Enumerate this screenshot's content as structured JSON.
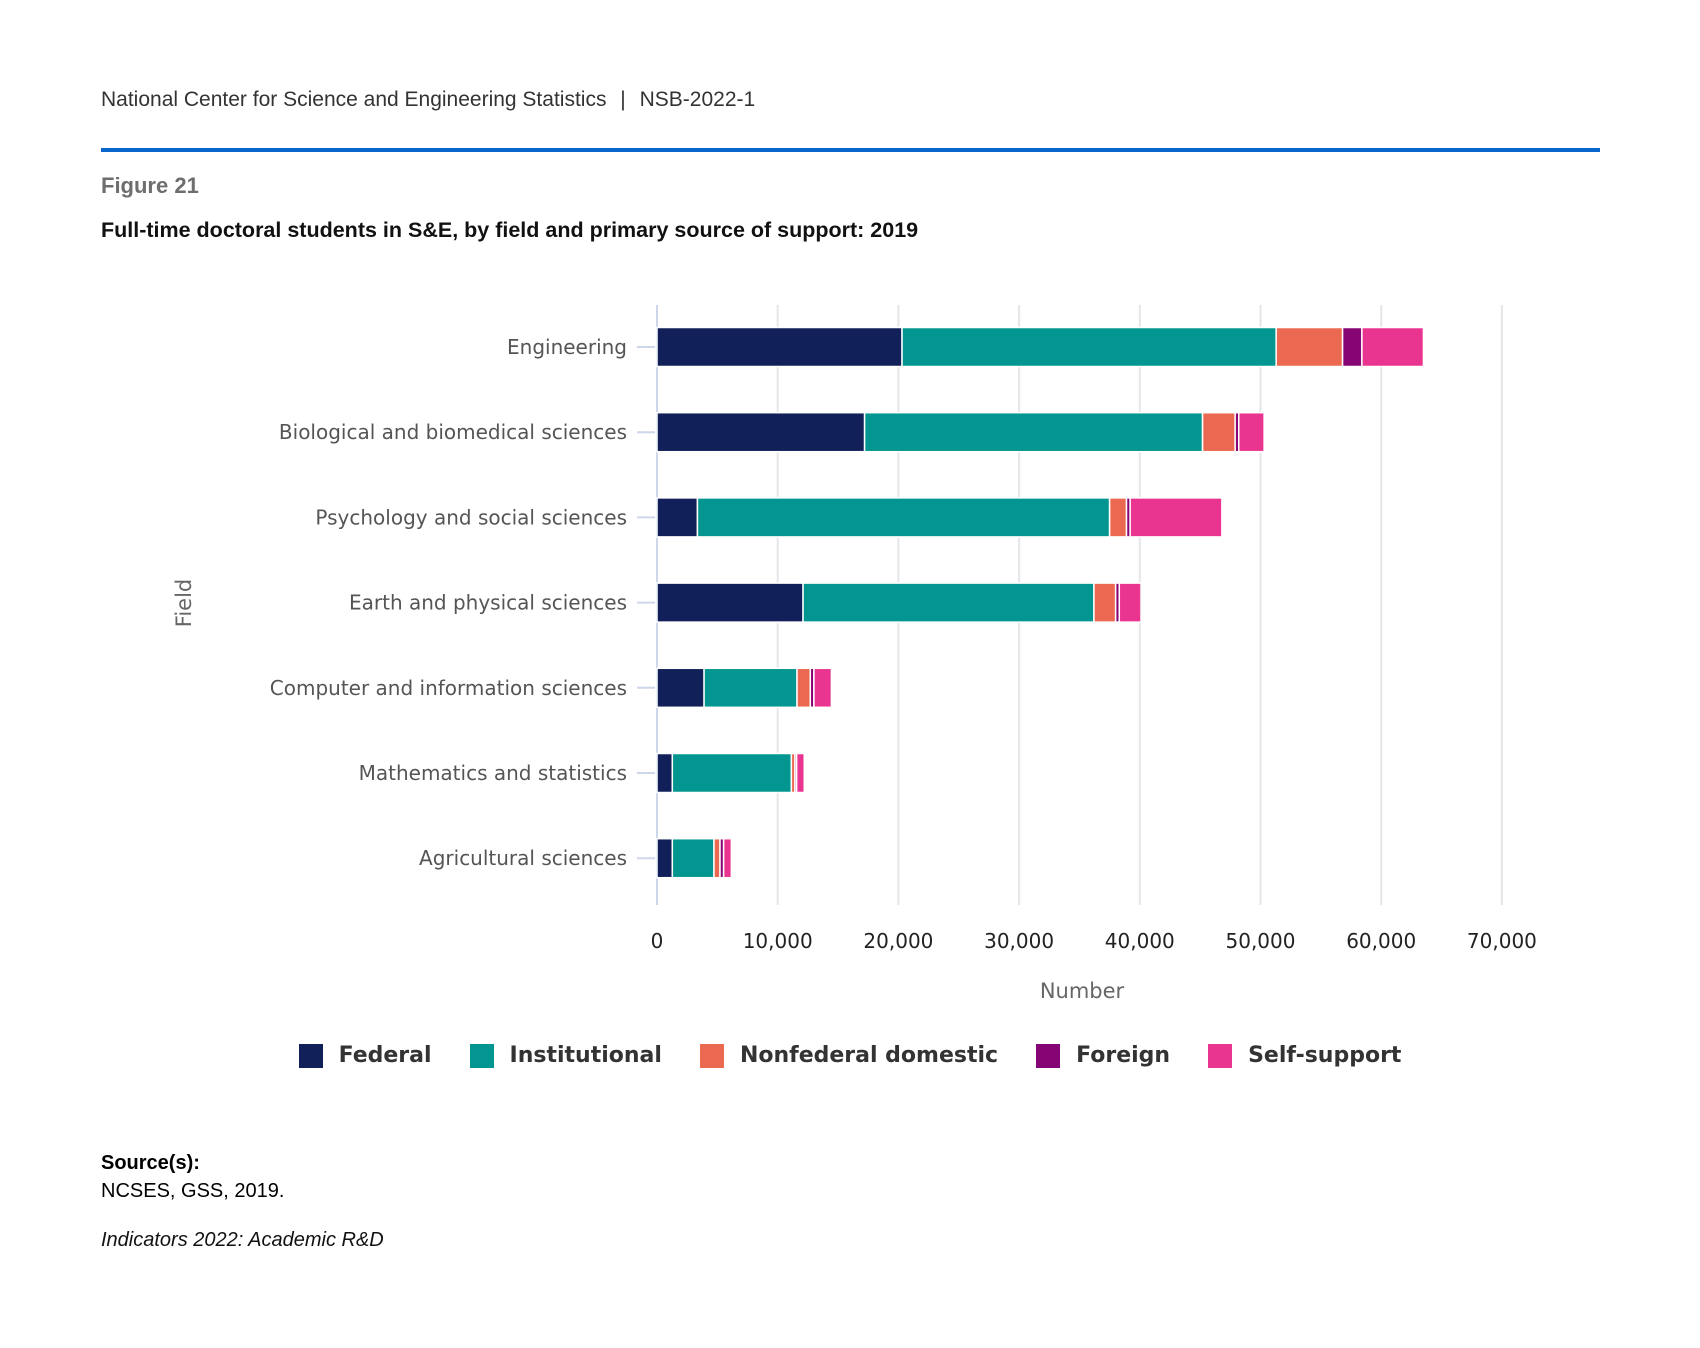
{
  "header": {
    "org": "National Center for Science and Engineering Statistics",
    "separator": "|",
    "report": "NSB-2022-1",
    "accent_color": "#0a66cc"
  },
  "figure": {
    "number": "Figure 21",
    "title": "Full-time doctoral students in S&E, by field and primary source of support: 2019"
  },
  "chart_data": {
    "type": "bar",
    "orientation": "horizontal",
    "stacked": true,
    "title": "Full-time doctoral students in S&E, by field and primary source of support: 2019",
    "xlabel": "Number",
    "ylabel": "Field",
    "xlim": [
      0,
      70000
    ],
    "x_ticks": [
      0,
      10000,
      20000,
      30000,
      40000,
      50000,
      60000,
      70000
    ],
    "x_tick_labels": [
      "0",
      "10,000",
      "20,000",
      "30,000",
      "40,000",
      "50,000",
      "60,000",
      "70,000"
    ],
    "grid": true,
    "legend_position": "bottom",
    "categories": [
      "Engineering",
      "Biological and biomedical sciences",
      "Psychology and social sciences",
      "Earth and physical sciences",
      "Computer and information sciences",
      "Mathematics and statistics",
      "Agricultural sciences"
    ],
    "series": [
      {
        "name": "Federal",
        "color": "#12205a",
        "values": [
          20300,
          17200,
          3350,
          12100,
          3900,
          1270,
          1270
        ]
      },
      {
        "name": "Institutional",
        "color": "#03958f",
        "values": [
          31000,
          28000,
          34150,
          24100,
          7700,
          9860,
          3450
        ]
      },
      {
        "name": "Nonfederal domestic",
        "color": "#eb6950",
        "values": [
          5500,
          2700,
          1400,
          1800,
          1100,
          300,
          500
        ]
      },
      {
        "name": "Foreign",
        "color": "#870474",
        "values": [
          1600,
          300,
          300,
          300,
          300,
          140,
          300
        ]
      },
      {
        "name": "Self-support",
        "color": "#ea3590",
        "values": [
          5100,
          2100,
          7600,
          1800,
          1450,
          630,
          640
        ]
      }
    ]
  },
  "footer": {
    "source_heading": "Source(s):",
    "source_text": "NCSES, GSS, 2019.",
    "indicators": "Indicators 2022: Academic R&D"
  }
}
